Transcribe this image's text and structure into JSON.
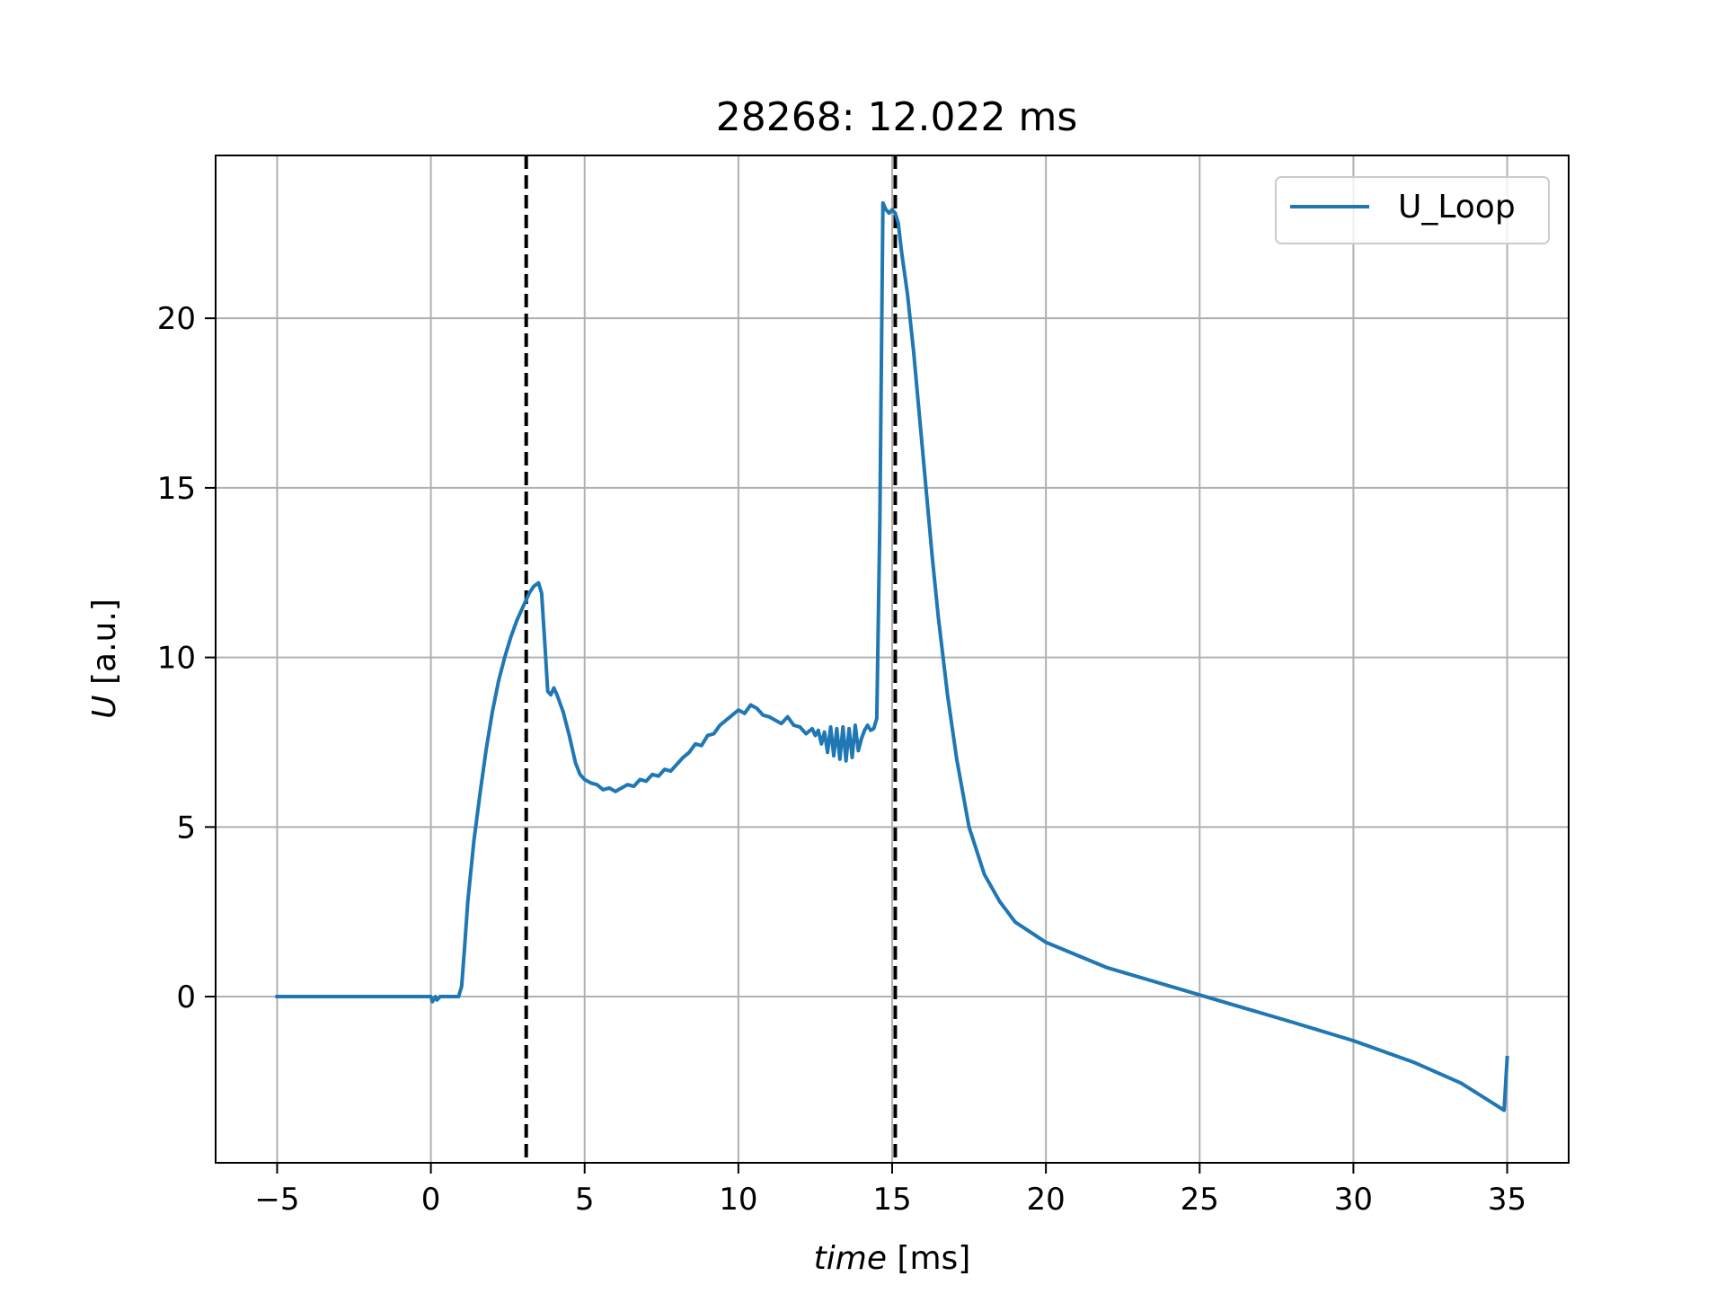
{
  "chart_data": {
    "type": "line",
    "title": "28268: 12.022 ms",
    "xlabel": {
      "var": "time",
      "unit": " [ms]"
    },
    "ylabel": {
      "var": "U",
      "unit": " [a.u.]"
    },
    "xlim": [
      -7,
      37
    ],
    "ylim": [
      -4.9,
      24.8
    ],
    "xticks": [
      -5,
      0,
      5,
      10,
      15,
      20,
      25,
      30,
      35
    ],
    "xtick_labels": [
      "−5",
      "0",
      "5",
      "10",
      "15",
      "20",
      "25",
      "30",
      "35"
    ],
    "yticks": [
      0,
      5,
      10,
      15,
      20
    ],
    "ytick_labels": [
      "0",
      "5",
      "10",
      "15",
      "20"
    ],
    "grid": true,
    "legend_position": "top-right",
    "vlines": [
      3.1,
      15.1
    ],
    "series": [
      {
        "name": "U_Loop",
        "color": "#1f77b4",
        "points": [
          [
            -5,
            0
          ],
          [
            -1,
            0
          ],
          [
            0,
            0
          ],
          [
            0.05,
            -0.15
          ],
          [
            0.15,
            0
          ],
          [
            0.2,
            -0.1
          ],
          [
            0.3,
            0
          ],
          [
            0.9,
            0
          ],
          [
            1.0,
            0.3
          ],
          [
            1.1,
            1.5
          ],
          [
            1.2,
            2.8
          ],
          [
            1.4,
            4.6
          ],
          [
            1.6,
            6.0
          ],
          [
            1.8,
            7.3
          ],
          [
            2.0,
            8.4
          ],
          [
            2.2,
            9.3
          ],
          [
            2.4,
            10.0
          ],
          [
            2.6,
            10.6
          ],
          [
            2.8,
            11.1
          ],
          [
            3.0,
            11.5
          ],
          [
            3.2,
            11.9
          ],
          [
            3.35,
            12.1
          ],
          [
            3.5,
            12.2
          ],
          [
            3.6,
            11.9
          ],
          [
            3.7,
            10.5
          ],
          [
            3.8,
            9.0
          ],
          [
            3.9,
            8.9
          ],
          [
            4.0,
            9.1
          ],
          [
            4.1,
            8.9
          ],
          [
            4.3,
            8.4
          ],
          [
            4.5,
            7.7
          ],
          [
            4.7,
            6.9
          ],
          [
            4.85,
            6.55
          ],
          [
            5.0,
            6.4
          ],
          [
            5.2,
            6.3
          ],
          [
            5.4,
            6.25
          ],
          [
            5.6,
            6.1
          ],
          [
            5.8,
            6.15
          ],
          [
            6.0,
            6.05
          ],
          [
            6.2,
            6.15
          ],
          [
            6.4,
            6.25
          ],
          [
            6.6,
            6.2
          ],
          [
            6.8,
            6.4
          ],
          [
            7.0,
            6.35
          ],
          [
            7.2,
            6.55
          ],
          [
            7.4,
            6.5
          ],
          [
            7.6,
            6.7
          ],
          [
            7.8,
            6.65
          ],
          [
            8.0,
            6.85
          ],
          [
            8.2,
            7.05
          ],
          [
            8.4,
            7.2
          ],
          [
            8.6,
            7.45
          ],
          [
            8.8,
            7.4
          ],
          [
            9.0,
            7.7
          ],
          [
            9.2,
            7.75
          ],
          [
            9.4,
            8.0
          ],
          [
            9.6,
            8.15
          ],
          [
            9.8,
            8.3
          ],
          [
            10.0,
            8.45
          ],
          [
            10.2,
            8.35
          ],
          [
            10.4,
            8.6
          ],
          [
            10.6,
            8.5
          ],
          [
            10.8,
            8.3
          ],
          [
            11.0,
            8.25
          ],
          [
            11.2,
            8.15
          ],
          [
            11.4,
            8.05
          ],
          [
            11.6,
            8.25
          ],
          [
            11.8,
            8.0
          ],
          [
            12.0,
            7.95
          ],
          [
            12.2,
            7.75
          ],
          [
            12.4,
            7.9
          ],
          [
            12.5,
            7.7
          ],
          [
            12.6,
            7.85
          ],
          [
            12.7,
            7.45
          ],
          [
            12.8,
            7.8
          ],
          [
            12.9,
            7.2
          ],
          [
            13.0,
            7.95
          ],
          [
            13.1,
            7.1
          ],
          [
            13.2,
            7.9
          ],
          [
            13.3,
            7.0
          ],
          [
            13.4,
            7.95
          ],
          [
            13.5,
            6.95
          ],
          [
            13.6,
            7.9
          ],
          [
            13.7,
            7.05
          ],
          [
            13.8,
            8.0
          ],
          [
            13.9,
            7.25
          ],
          [
            14.0,
            7.6
          ],
          [
            14.1,
            7.85
          ],
          [
            14.2,
            8.0
          ],
          [
            14.3,
            7.85
          ],
          [
            14.4,
            7.9
          ],
          [
            14.5,
            8.2
          ],
          [
            14.6,
            14.0
          ],
          [
            14.7,
            23.4
          ],
          [
            14.8,
            23.2
          ],
          [
            14.9,
            23.1
          ],
          [
            15.0,
            23.2
          ],
          [
            15.1,
            23.1
          ],
          [
            15.2,
            22.8
          ],
          [
            15.3,
            22.0
          ],
          [
            15.5,
            20.7
          ],
          [
            15.7,
            19.0
          ],
          [
            15.9,
            17.0
          ],
          [
            16.1,
            15.0
          ],
          [
            16.3,
            13.0
          ],
          [
            16.5,
            11.2
          ],
          [
            16.8,
            8.9
          ],
          [
            17.1,
            7.0
          ],
          [
            17.5,
            5.0
          ],
          [
            18.0,
            3.6
          ],
          [
            18.5,
            2.8
          ],
          [
            19.0,
            2.2
          ],
          [
            20.0,
            1.6
          ],
          [
            22.0,
            0.85
          ],
          [
            25.0,
            0.05
          ],
          [
            28.0,
            -0.75
          ],
          [
            30.0,
            -1.3
          ],
          [
            32.0,
            -1.95
          ],
          [
            33.5,
            -2.55
          ],
          [
            34.9,
            -3.35
          ],
          [
            35.0,
            -1.8
          ]
        ]
      }
    ]
  }
}
